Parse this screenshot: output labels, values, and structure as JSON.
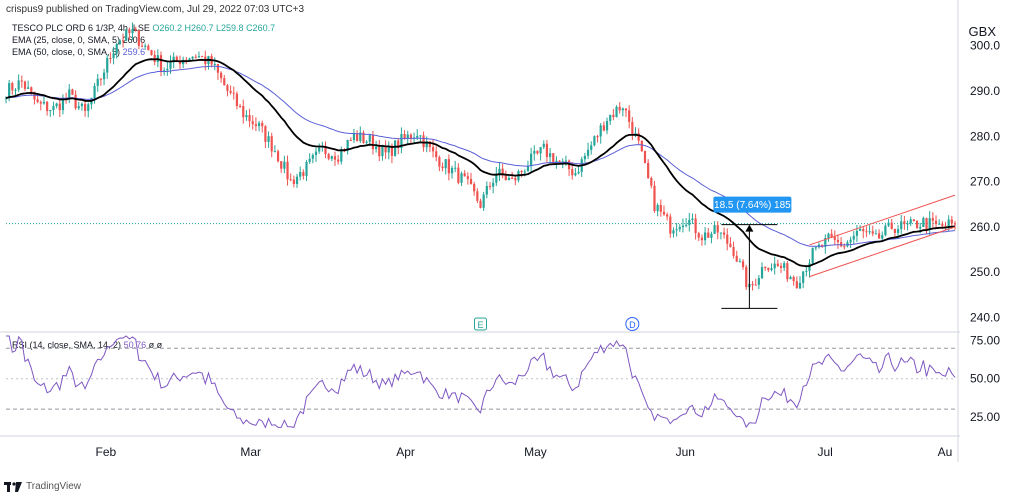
{
  "header": {
    "credit": "crispus9 published on TradingView.com, Jul 29, 2022 07:03 UTC+3",
    "symbol_line": {
      "name": "TESCO PLC ORD 6 1/3P, 4h, LSE",
      "o": "O260.2",
      "h": "H260.7",
      "l": "L259.8",
      "c": "C260.7"
    },
    "ema25": {
      "label": "EMA (25, close, 0, SMA, 5)",
      "value": "260.6"
    },
    "ema50": {
      "label": "EMA (50, close, 0, SMA, 5)",
      "value": "259.6"
    },
    "currency": "GBX"
  },
  "rsi_header": {
    "label": "RSI (14, close, SMA, 14, 2)",
    "value": "50.76",
    "extra1": "ø",
    "extra2": "ø"
  },
  "measure": {
    "label": "18.5 (7.64%) 185"
  },
  "markers": {
    "earnings": "E",
    "dividend": "D"
  },
  "footer": {
    "brand": "TradingView"
  },
  "colors": {
    "up": "#26a69a",
    "down": "#ef5350",
    "ema25": "#000000",
    "ema50": "#5b5fd6",
    "rsi": "#7e57c2",
    "channel": "#ef5350",
    "measure": "#2196f3"
  },
  "chart_data": [
    {
      "type": "candlestick",
      "price_ticks": [
        300.0,
        290.0,
        280.0,
        270.0,
        260.0,
        250.0,
        240.0
      ],
      "price_tick_labels": [
        "300.0",
        "290.0",
        "280.0",
        "270.0",
        "260.0",
        "250.0",
        "240.0"
      ],
      "ylim": [
        237,
        307
      ],
      "x_ticks": [
        "Feb",
        "Mar",
        "Apr",
        "May",
        "Jun",
        "Jul",
        "Au"
      ],
      "last_price": 260.7,
      "close_anchors": [
        [
          0,
          290
        ],
        [
          5,
          292
        ],
        [
          10,
          287
        ],
        [
          15,
          286
        ],
        [
          20,
          289
        ],
        [
          25,
          285
        ],
        [
          30,
          293
        ],
        [
          35,
          301
        ],
        [
          40,
          303
        ],
        [
          45,
          299
        ],
        [
          50,
          295
        ],
        [
          55,
          297
        ],
        [
          60,
          298
        ],
        [
          65,
          296
        ],
        [
          70,
          290
        ],
        [
          75,
          285
        ],
        [
          80,
          282
        ],
        [
          85,
          277
        ],
        [
          90,
          270
        ],
        [
          95,
          273
        ],
        [
          100,
          277
        ],
        [
          105,
          276
        ],
        [
          110,
          280
        ],
        [
          115,
          279
        ],
        [
          120,
          276
        ],
        [
          125,
          279
        ],
        [
          130,
          281
        ],
        [
          135,
          276
        ],
        [
          140,
          273
        ],
        [
          145,
          270
        ],
        [
          150,
          265
        ],
        [
          155,
          272
        ],
        [
          160,
          270
        ],
        [
          165,
          274
        ],
        [
          170,
          277
        ],
        [
          175,
          274
        ],
        [
          180,
          272
        ],
        [
          185,
          278
        ],
        [
          190,
          284
        ],
        [
          195,
          287
        ],
        [
          200,
          278
        ],
        [
          205,
          265
        ],
        [
          210,
          260
        ],
        [
          215,
          262
        ],
        [
          220,
          258
        ],
        [
          225,
          259
        ],
        [
          230,
          255
        ],
        [
          235,
          246
        ],
        [
          240,
          252
        ],
        [
          245,
          251
        ],
        [
          250,
          248
        ],
        [
          255,
          254
        ],
        [
          260,
          257
        ],
        [
          265,
          256
        ],
        [
          270,
          259
        ],
        [
          275,
          257
        ],
        [
          280,
          260
        ],
        [
          285,
          260
        ],
        [
          290,
          261
        ],
        [
          295,
          260
        ],
        [
          300,
          260.7
        ]
      ],
      "channel_lines": [
        {
          "from": [
            254,
            256
          ],
          "to": [
            300,
            267
          ]
        },
        {
          "from": [
            254,
            249
          ],
          "to": [
            300,
            260
          ]
        }
      ],
      "measure_range": {
        "x": 235,
        "from": 242,
        "to": 260.5
      }
    },
    {
      "type": "line",
      "name": "RSI",
      "ylim": [
        15,
        80
      ],
      "y_ticks": [
        75.0,
        50.0,
        25.0
      ],
      "y_tick_labels": [
        "75.00",
        "50.00",
        "25.00"
      ],
      "bands": [
        70,
        30
      ],
      "last_value": 50.76
    }
  ]
}
